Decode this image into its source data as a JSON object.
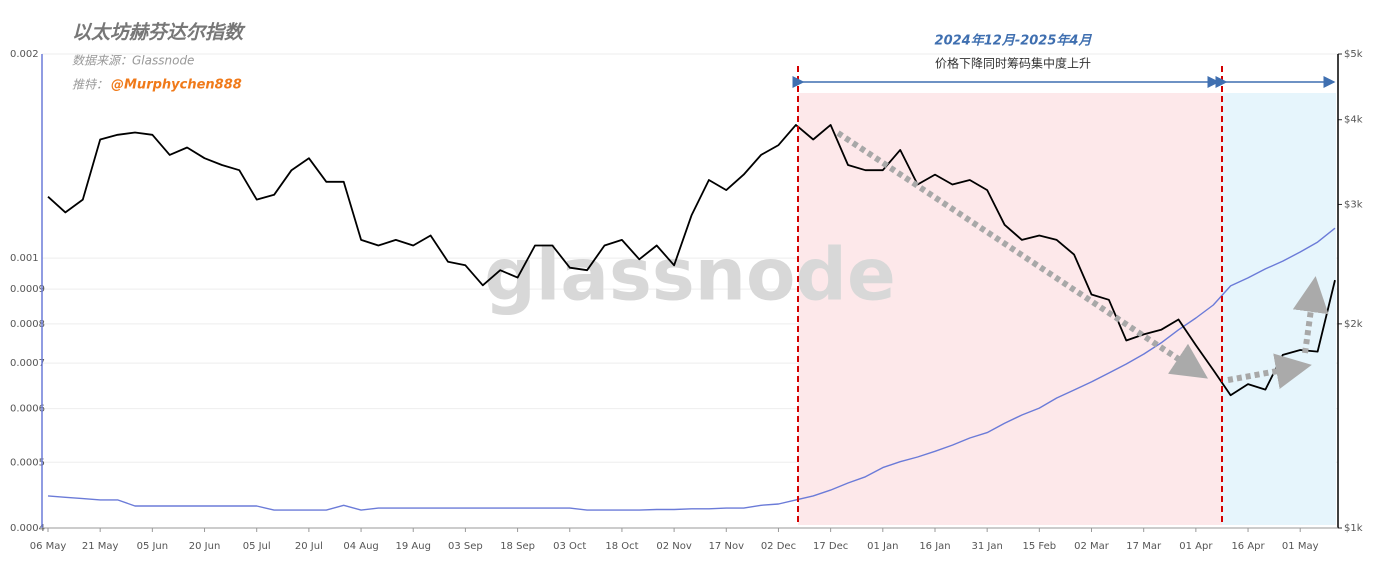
{
  "chart_data": {
    "type": "line",
    "title": "以太坊赫芬达尔指数",
    "source": "数据来源：Glassnode",
    "twitter_label": "推特：",
    "twitter_handle": "@Murphychen888",
    "period": "2024年12月-2025年4月",
    "period_note": "价格下降同时筹码集中度上升",
    "watermark": "glassnode",
    "categories": [
      "06 May",
      null,
      null,
      "21 May",
      null,
      null,
      "05 Jun",
      null,
      null,
      "20 Jun",
      null,
      null,
      "05 Jul",
      null,
      null,
      "20 Jul",
      null,
      null,
      "04 Aug",
      null,
      null,
      "19 Aug",
      null,
      null,
      "03 Sep",
      null,
      null,
      "18 Sep",
      null,
      null,
      "03 Oct",
      null,
      null,
      "18 Oct",
      null,
      null,
      "02 Nov",
      null,
      null,
      "17 Nov",
      null,
      null,
      "02 Dec",
      null,
      null,
      "17 Dec",
      null,
      null,
      "01 Jan",
      null,
      null,
      "16 Jan",
      null,
      null,
      "31 Jan",
      null,
      null,
      "15 Feb",
      null,
      null,
      "02 Mar",
      null,
      null,
      "17 Mar",
      null,
      null,
      "01 Apr",
      null,
      null,
      "16 Apr",
      null,
      null,
      "01 May",
      null,
      null
    ],
    "series": [
      {
        "color": "#6b7bd8",
        "axis": "y",
        "values": [
          0.000446,
          0.000444,
          0.000442,
          0.00044,
          0.00044,
          0.000431,
          0.000431,
          0.000431,
          0.000431,
          0.000431,
          0.000431,
          0.000431,
          0.000431,
          0.000425,
          0.000425,
          0.000425,
          0.000425,
          0.000432,
          0.000425,
          0.000428,
          0.000428,
          0.000428,
          0.000428,
          0.000428,
          0.000428,
          0.000428,
          0.000428,
          0.000428,
          0.000428,
          0.000428,
          0.000428,
          0.000425,
          0.000425,
          0.000425,
          0.000425,
          0.000426,
          0.000426,
          0.000427,
          0.000427,
          0.000428,
          0.000428,
          0.000432,
          0.000434,
          0.00044,
          0.000446,
          0.000455,
          0.000466,
          0.000476,
          0.000491,
          0.000501,
          0.000509,
          0.000519,
          0.00053,
          0.000543,
          0.000553,
          0.000571,
          0.000587,
          0.000601,
          0.000622,
          0.000639,
          0.000657,
          0.000677,
          0.000698,
          0.000722,
          0.00075,
          0.000784,
          0.000816,
          0.000853,
          0.00091,
          0.000935,
          0.000964,
          0.00099,
          0.001021,
          0.001056,
          0.001107
        ]
      },
      {
        "color": "#000000",
        "axis": "y2",
        "values": [
          3080,
          2920,
          3050,
          3740,
          3800,
          3830,
          3800,
          3550,
          3640,
          3510,
          3430,
          3370,
          3050,
          3100,
          3370,
          3510,
          3240,
          3240,
          2660,
          2610,
          2660,
          2610,
          2700,
          2470,
          2440,
          2280,
          2400,
          2340,
          2610,
          2610,
          2420,
          2400,
          2610,
          2660,
          2490,
          2610,
          2440,
          2890,
          3260,
          3150,
          3320,
          3550,
          3670,
          3930,
          3740,
          3930,
          3430,
          3370,
          3370,
          3610,
          3210,
          3320,
          3210,
          3260,
          3150,
          2800,
          2660,
          2700,
          2660,
          2530,
          2210,
          2170,
          1890,
          1930,
          1960,
          2030,
          1860,
          1710,
          1570,
          1630,
          1600,
          1800,
          1830,
          1820,
          2320
        ]
      }
    ],
    "ylim": [
      0.0004,
      0.002
    ],
    "yticks": [
      0.0004,
      0.0005,
      0.0006,
      0.0007,
      0.0008,
      0.0009,
      0.001,
      0.002
    ],
    "ylog": true,
    "y2lim": [
      1000,
      5000
    ],
    "y2ticks": [
      {
        "value": 1000,
        "label": "$1k"
      },
      {
        "value": 2000,
        "label": "$2k"
      },
      {
        "value": 3000,
        "label": "$3k"
      },
      {
        "value": 4000,
        "label": "$4k"
      },
      {
        "value": 5000,
        "label": "$5k"
      }
    ],
    "y2log": true,
    "grid": true
  }
}
